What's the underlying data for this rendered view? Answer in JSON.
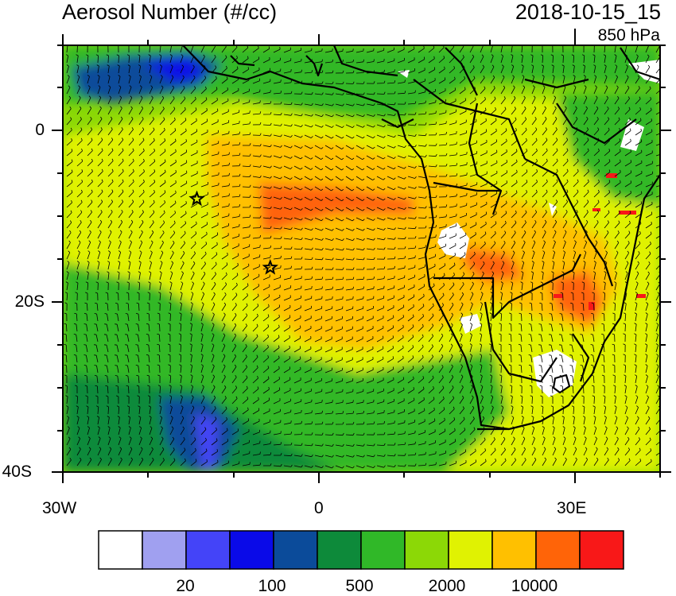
{
  "title": "Aerosol Number (#/cc)",
  "datetime": "2018-10-15_15",
  "level": "850 hPa",
  "y_axis_labels": [
    "0",
    "20S",
    "40S"
  ],
  "x_axis_labels": [
    "30W",
    "0",
    "30E"
  ],
  "colorbar": {
    "colors": [
      "#ffffff",
      "#a0a0f0",
      "#4444f8",
      "#0a0ae8",
      "#0b4b9a",
      "#0d8a3a",
      "#30b828",
      "#8cd806",
      "#e0f202",
      "#ffc000",
      "#ff6408",
      "#f81818"
    ],
    "labels": [
      "20",
      "100",
      "500",
      "2000",
      "10000"
    ]
  },
  "markers": [
    {
      "name": "star-marker-1",
      "lon": -14.3,
      "lat": -8.0
    },
    {
      "name": "star-marker-2",
      "lon": -5.7,
      "lat": -16.0
    }
  ]
}
